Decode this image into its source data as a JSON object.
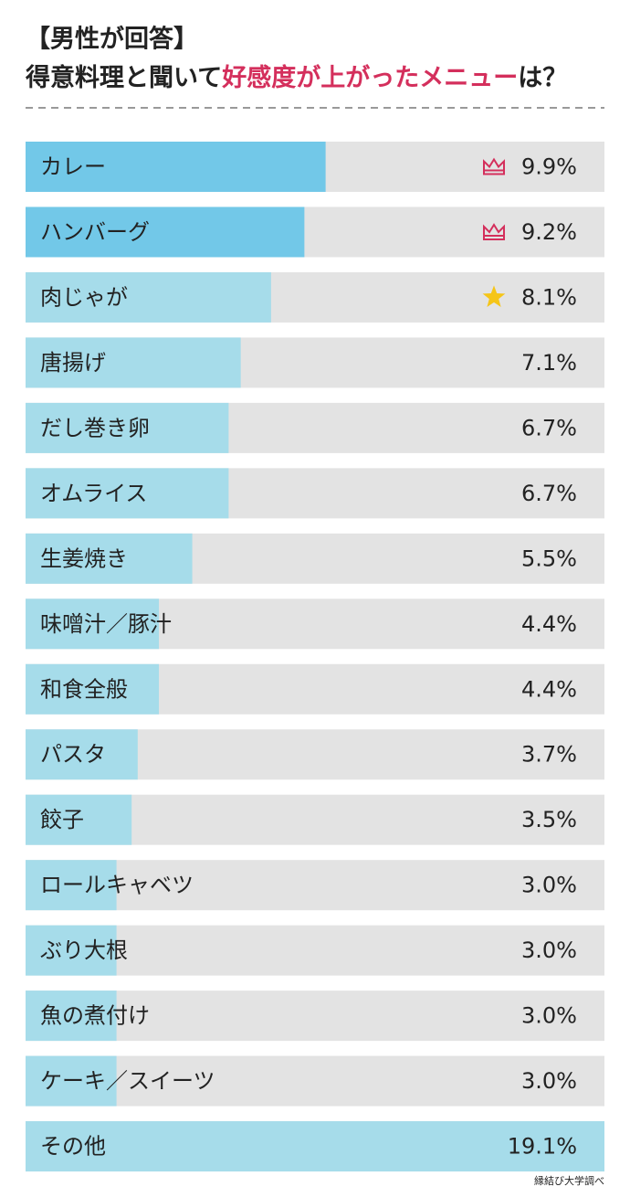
{
  "chart_data": {
    "type": "bar",
    "orientation": "horizontal",
    "subtitle": "【男性が回答】",
    "title_parts": [
      {
        "text": "得意料理と聞いて",
        "color": "#222222"
      },
      {
        "text": "好感度が上がったメニュー",
        "color": "#d42f5c"
      },
      {
        "text": "は？",
        "color": "#222222"
      }
    ],
    "categories": [
      "カレー",
      "ハンバーグ",
      "肉じゃが",
      "唐揚げ",
      "だし巻き卵",
      "オムライス",
      "生姜焼き",
      "味噌汁／豚汁",
      "和食全般",
      "パスタ",
      "餃子",
      "ロールキャベツ",
      "ぶり大根",
      "魚の煮付け",
      "ケーキ／スイーツ",
      "その他"
    ],
    "values": [
      9.9,
      9.2,
      8.1,
      7.1,
      6.7,
      6.7,
      5.5,
      4.4,
      4.4,
      3.7,
      3.5,
      3.0,
      3.0,
      3.0,
      3.0,
      19.1
    ],
    "value_labels": [
      "9.9%",
      "9.2%",
      "8.1%",
      "7.1%",
      "6.7%",
      "6.7%",
      "5.5%",
      "4.4%",
      "4.4%",
      "3.7%",
      "3.5%",
      "3.0%",
      "3.0%",
      "3.0%",
      "3.0%",
      "19.1%"
    ],
    "colors": [
      "#72c8e8",
      "#72c8e8",
      "#a6dcea",
      "#a6dcea",
      "#a6dcea",
      "#a6dcea",
      "#a6dcea",
      "#a6dcea",
      "#a6dcea",
      "#a6dcea",
      "#a6dcea",
      "#a6dcea",
      "#a6dcea",
      "#a6dcea",
      "#a6dcea",
      "#a6dcea"
    ],
    "track_color": "#e3e3e3",
    "xlim": [
      0,
      19.1
    ],
    "source": "縁結び大学調べ"
  }
}
